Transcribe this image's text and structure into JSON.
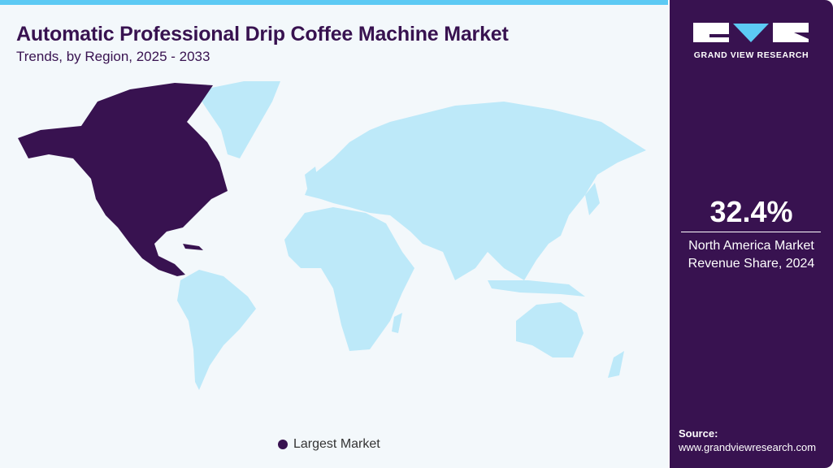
{
  "header": {
    "title": "Automatic Professional Drip Coffee Machine Market",
    "subtitle": "Trends, by Region, 2025 - 2033"
  },
  "chart_data": {
    "type": "map",
    "title": "Automatic Professional Drip Coffee Machine Market",
    "subtitle": "Trends, by Region, 2025 - 2033",
    "highlighted_regions": [
      {
        "name": "North America",
        "category": "Largest Market",
        "color": "#381250"
      }
    ],
    "other_regions_color": "#bde9f9",
    "legend": [
      {
        "label": "Largest Market",
        "color": "#381250"
      }
    ],
    "legend_placement": "bottom"
  },
  "legend": {
    "label": "Largest Market"
  },
  "sidebar": {
    "logo_text": "GRAND VIEW RESEARCH",
    "stat_value": "32.4%",
    "stat_label_line1": "North America Market",
    "stat_label_line2": "Revenue Share, 2024",
    "source_label": "Source:",
    "source_url": "www.grandviewresearch.com"
  },
  "colors": {
    "accent": "#5ccaf4",
    "brand": "#381250",
    "map_base": "#bde9f9"
  }
}
